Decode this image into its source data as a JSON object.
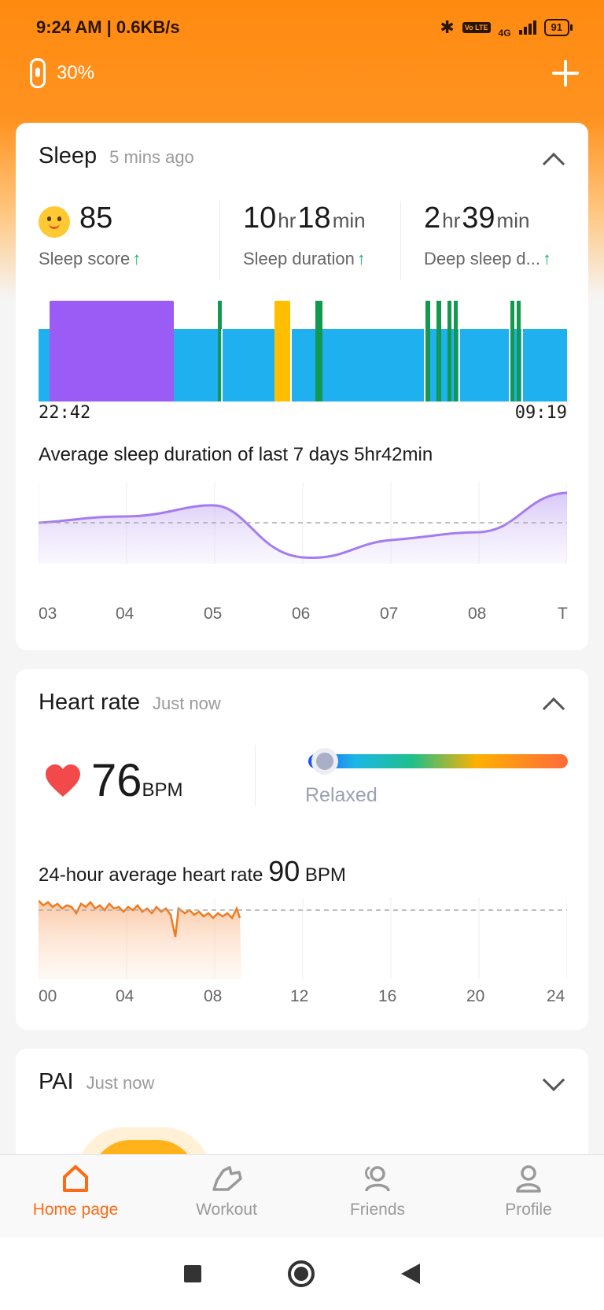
{
  "status": {
    "time_speed": "9:24 AM | 0.6KB/s",
    "network": "4G",
    "lte_badge": "Vo LTE",
    "battery": "91"
  },
  "device": {
    "battery": "30%",
    "add_icon": "plus-icon"
  },
  "sleep": {
    "title": "Sleep",
    "updated": "5 mins ago",
    "score_value": "85",
    "score_label": "Sleep score",
    "duration_hr": "10",
    "duration_min": "18",
    "duration_label": "Sleep duration",
    "deep_hr": "2",
    "deep_min": "39",
    "deep_label": "Deep sleep d...",
    "unit_hr": "hr",
    "unit_min": "min",
    "start_time": "22:42",
    "end_time": "09:19",
    "stage_colors": {
      "deep": "#9a5cf5",
      "light": "#1fb0f0",
      "rem": "#ffbf00",
      "awake": "#12994f"
    },
    "avg_title": "Average sleep duration of last 7 days 5hr42min",
    "week_axis": [
      "03",
      "04",
      "05",
      "06",
      "07",
      "08",
      "T"
    ]
  },
  "heart": {
    "title": "Heart rate",
    "updated": "Just now",
    "bpm_value": "76",
    "bpm_unit": "BPM",
    "zone": "Relaxed",
    "avg_prefix": "24-hour average heart rate",
    "avg_value": "90",
    "avg_unit": "BPM",
    "day_axis": [
      "00",
      "04",
      "08",
      "12",
      "16",
      "20",
      "24"
    ],
    "series_color": "#f07a1e"
  },
  "pai": {
    "title": "PAI",
    "updated": "Just now"
  },
  "tabs": [
    {
      "label": "Home page",
      "icon": "home-icon",
      "active": true
    },
    {
      "label": "Workout",
      "icon": "shoe-icon",
      "active": false
    },
    {
      "label": "Friends",
      "icon": "friends-icon",
      "active": false
    },
    {
      "label": "Profile",
      "icon": "profile-icon",
      "active": false
    }
  ],
  "accent": "#ff6a14"
}
